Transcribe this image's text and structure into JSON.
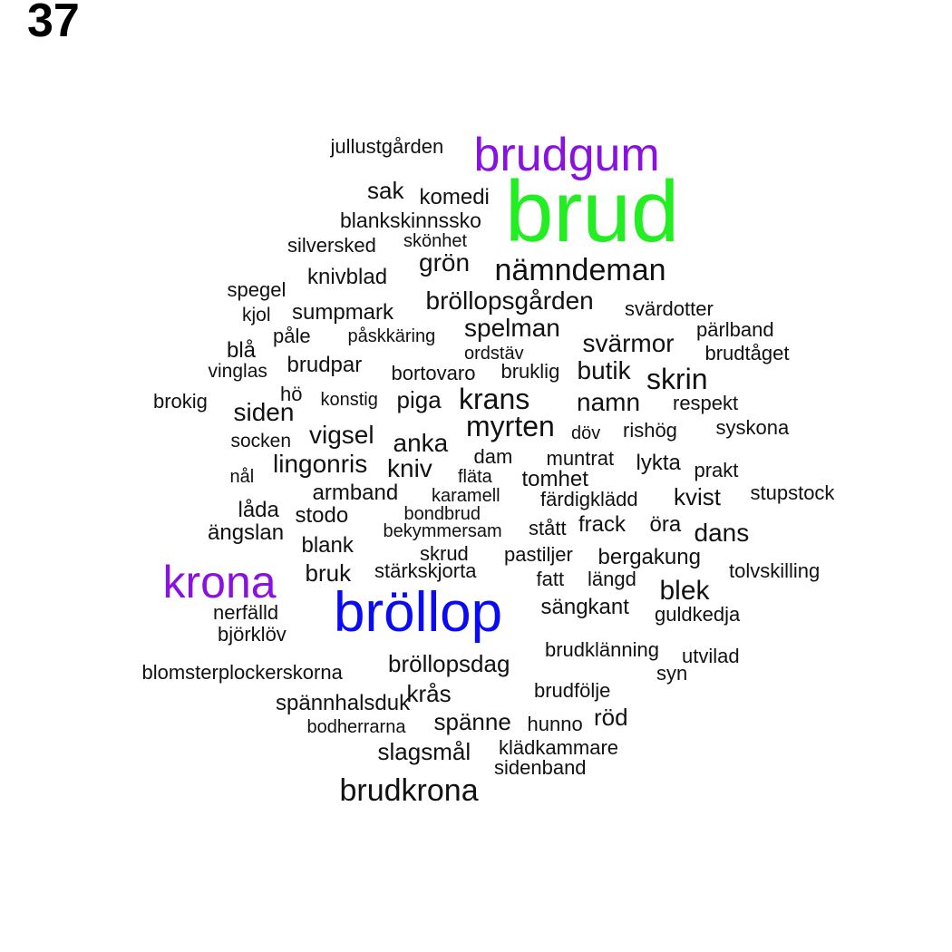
{
  "label": "37",
  "colors": {
    "green": "#22ee22",
    "blue": "#0a0af5",
    "purple": "#8a12e0",
    "black": "#111111"
  },
  "words": [
    {
      "text": "jullustgården",
      "color": "black"
    },
    {
      "text": "brudgum",
      "color": "purple"
    },
    {
      "text": "brud",
      "color": "green"
    },
    {
      "text": "sak",
      "color": "black"
    },
    {
      "text": "komedi",
      "color": "black"
    },
    {
      "text": "blankskinnssko",
      "color": "black"
    },
    {
      "text": "silversked",
      "color": "black"
    },
    {
      "text": "skönhet",
      "color": "black"
    },
    {
      "text": "grön",
      "color": "black"
    },
    {
      "text": "nämndeman",
      "color": "black"
    },
    {
      "text": "knivblad",
      "color": "black"
    },
    {
      "text": "spegel",
      "color": "black"
    },
    {
      "text": "bröllopsgården",
      "color": "black"
    },
    {
      "text": "svärdotter",
      "color": "black"
    },
    {
      "text": "kjol",
      "color": "black"
    },
    {
      "text": "sumpmark",
      "color": "black"
    },
    {
      "text": "spelman",
      "color": "black"
    },
    {
      "text": "pärlband",
      "color": "black"
    },
    {
      "text": "påle",
      "color": "black"
    },
    {
      "text": "påskkäring",
      "color": "black"
    },
    {
      "text": "svärmor",
      "color": "black"
    },
    {
      "text": "blå",
      "color": "black"
    },
    {
      "text": "ordstäv",
      "color": "black"
    },
    {
      "text": "brudtåget",
      "color": "black"
    },
    {
      "text": "vinglas",
      "color": "black"
    },
    {
      "text": "brudpar",
      "color": "black"
    },
    {
      "text": "bortovaro",
      "color": "black"
    },
    {
      "text": "bruklig",
      "color": "black"
    },
    {
      "text": "butik",
      "color": "black"
    },
    {
      "text": "skrin",
      "color": "black"
    },
    {
      "text": "hö",
      "color": "black"
    },
    {
      "text": "brokig",
      "color": "black"
    },
    {
      "text": "konstig",
      "color": "black"
    },
    {
      "text": "piga",
      "color": "black"
    },
    {
      "text": "krans",
      "color": "black"
    },
    {
      "text": "namn",
      "color": "black"
    },
    {
      "text": "respekt",
      "color": "black"
    },
    {
      "text": "siden",
      "color": "black"
    },
    {
      "text": "myrten",
      "color": "black"
    },
    {
      "text": "döv",
      "color": "black"
    },
    {
      "text": "rishög",
      "color": "black"
    },
    {
      "text": "syskona",
      "color": "black"
    },
    {
      "text": "socken",
      "color": "black"
    },
    {
      "text": "vigsel",
      "color": "black"
    },
    {
      "text": "anka",
      "color": "black"
    },
    {
      "text": "dam",
      "color": "black"
    },
    {
      "text": "muntrat",
      "color": "black"
    },
    {
      "text": "lykta",
      "color": "black"
    },
    {
      "text": "prakt",
      "color": "black"
    },
    {
      "text": "lingonris",
      "color": "black"
    },
    {
      "text": "kniv",
      "color": "black"
    },
    {
      "text": "fläta",
      "color": "black"
    },
    {
      "text": "tomhet",
      "color": "black"
    },
    {
      "text": "nål",
      "color": "black"
    },
    {
      "text": "armband",
      "color": "black"
    },
    {
      "text": "karamell",
      "color": "black"
    },
    {
      "text": "färdigklädd",
      "color": "black"
    },
    {
      "text": "kvist",
      "color": "black"
    },
    {
      "text": "stupstock",
      "color": "black"
    },
    {
      "text": "låda",
      "color": "black"
    },
    {
      "text": "stodo",
      "color": "black"
    },
    {
      "text": "bondbrud",
      "color": "black"
    },
    {
      "text": "ängslan",
      "color": "black"
    },
    {
      "text": "bekymmersam",
      "color": "black"
    },
    {
      "text": "stått",
      "color": "black"
    },
    {
      "text": "frack",
      "color": "black"
    },
    {
      "text": "öra",
      "color": "black"
    },
    {
      "text": "dans",
      "color": "black"
    },
    {
      "text": "blank",
      "color": "black"
    },
    {
      "text": "skrud",
      "color": "black"
    },
    {
      "text": "pastiljer",
      "color": "black"
    },
    {
      "text": "bergakung",
      "color": "black"
    },
    {
      "text": "krona",
      "color": "purple"
    },
    {
      "text": "bruk",
      "color": "black"
    },
    {
      "text": "stärkskjorta",
      "color": "black"
    },
    {
      "text": "fatt",
      "color": "black"
    },
    {
      "text": "längd",
      "color": "black"
    },
    {
      "text": "tolvskilling",
      "color": "black"
    },
    {
      "text": "blek",
      "color": "black"
    },
    {
      "text": "bröllop",
      "color": "blue"
    },
    {
      "text": "nerfälld",
      "color": "black"
    },
    {
      "text": "sängkant",
      "color": "black"
    },
    {
      "text": "guldkedja",
      "color": "black"
    },
    {
      "text": "björklöv",
      "color": "black"
    },
    {
      "text": "brudklänning",
      "color": "black"
    },
    {
      "text": "utvilad",
      "color": "black"
    },
    {
      "text": "blomsterplockerskorna",
      "color": "black"
    },
    {
      "text": "bröllopsdag",
      "color": "black"
    },
    {
      "text": "syn",
      "color": "black"
    },
    {
      "text": "spännhalsduk",
      "color": "black"
    },
    {
      "text": "krås",
      "color": "black"
    },
    {
      "text": "brudfölje",
      "color": "black"
    },
    {
      "text": "röd",
      "color": "black"
    },
    {
      "text": "bodherrarna",
      "color": "black"
    },
    {
      "text": "spänne",
      "color": "black"
    },
    {
      "text": "hunno",
      "color": "black"
    },
    {
      "text": "slagsmål",
      "color": "black"
    },
    {
      "text": "klädkammare",
      "color": "black"
    },
    {
      "text": "sidenband",
      "color": "black"
    },
    {
      "text": "brudkrona",
      "color": "black"
    }
  ]
}
